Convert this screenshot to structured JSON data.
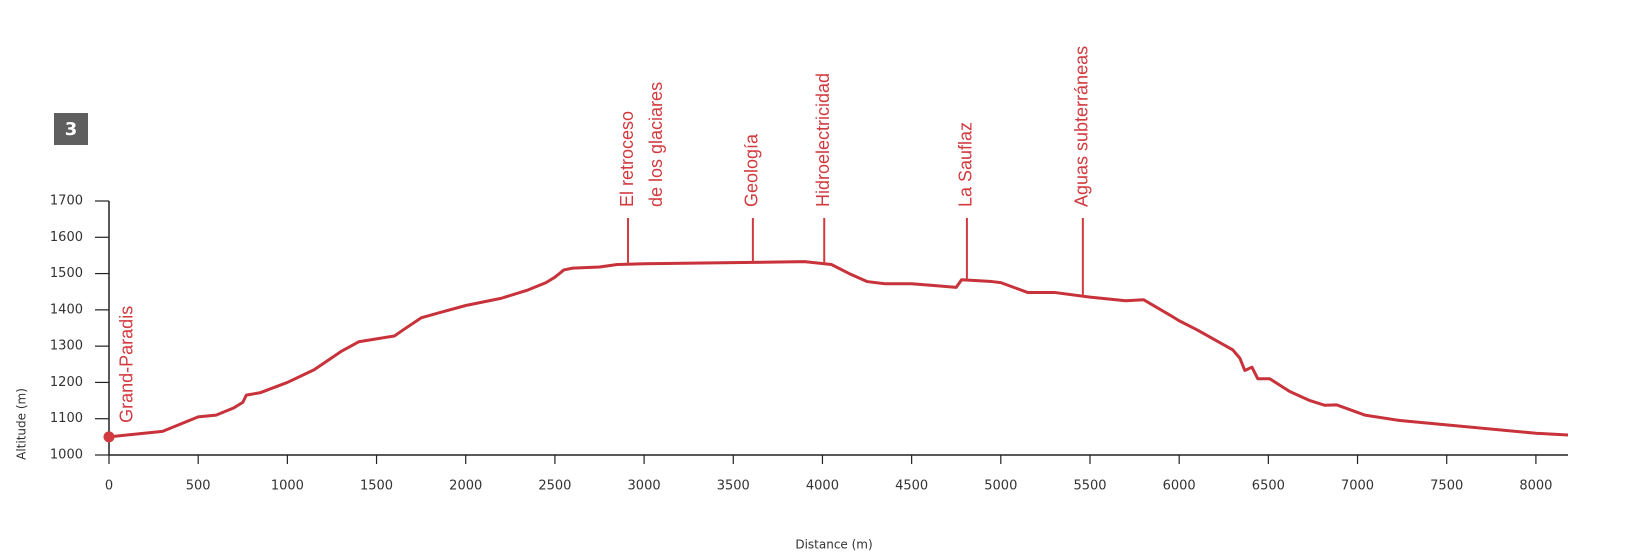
{
  "badge": "3",
  "chart_data": {
    "type": "line",
    "xlabel": "Distance (m)",
    "ylabel": "Altitude (m)",
    "xlim": [
      0,
      8180
    ],
    "ylim": [
      1000,
      1700
    ],
    "xticks": [
      0,
      500,
      1000,
      1500,
      2000,
      2500,
      3000,
      3500,
      4000,
      4500,
      5000,
      5500,
      6000,
      6500,
      7000,
      7500,
      8000
    ],
    "yticks": [
      1000,
      1100,
      1200,
      1300,
      1400,
      1500,
      1600,
      1700
    ],
    "series": [
      {
        "color": "#c8323a",
        "x": [
          0,
          300,
          400,
          500,
          600,
          700,
          750,
          770,
          850,
          1000,
          1150,
          1300,
          1400,
          1500,
          1600,
          1650,
          1750,
          1850,
          2000,
          2200,
          2350,
          2450,
          2500,
          2550,
          2600,
          2750,
          2850,
          3000,
          3500,
          3900,
          4050,
          4150,
          4250,
          4350,
          4500,
          4650,
          4750,
          4780,
          4950,
          5000,
          5150,
          5300,
          5500,
          5700,
          5800,
          5950,
          6000,
          6100,
          6300,
          6340,
          6368,
          6408,
          6441,
          6508,
          6620,
          6733,
          6817,
          6884,
          7041,
          7238,
          8000,
          8180
        ],
        "values": [
          1050,
          1065,
          1085,
          1105,
          1110,
          1130,
          1145,
          1165,
          1172,
          1200,
          1235,
          1285,
          1312,
          1320,
          1328,
          1345,
          1378,
          1392,
          1412,
          1432,
          1455,
          1475,
          1490,
          1510,
          1515,
          1518,
          1525,
          1527,
          1530,
          1533,
          1525,
          1500,
          1478,
          1472,
          1472,
          1466,
          1462,
          1483,
          1478,
          1475,
          1448,
          1448,
          1435,
          1425,
          1428,
          1385,
          1370,
          1345,
          1290,
          1267,
          1233,
          1242,
          1210,
          1210,
          1175,
          1150,
          1137,
          1138,
          1110,
          1095,
          1060,
          1055
        ]
      }
    ],
    "start_label": "Grand-Paradis",
    "annotations": [
      {
        "x": 2910,
        "lines": [
          "El retroceso",
          "de los glaciares"
        ]
      },
      {
        "x": 3610,
        "lines": [
          "Geología"
        ]
      },
      {
        "x": 4010,
        "lines": [
          "Hidroelectricidad"
        ]
      },
      {
        "x": 4810,
        "lines": [
          "La Sauflaz"
        ]
      },
      {
        "x": 5460,
        "lines": [
          "Aguas subterráneas"
        ]
      }
    ]
  }
}
